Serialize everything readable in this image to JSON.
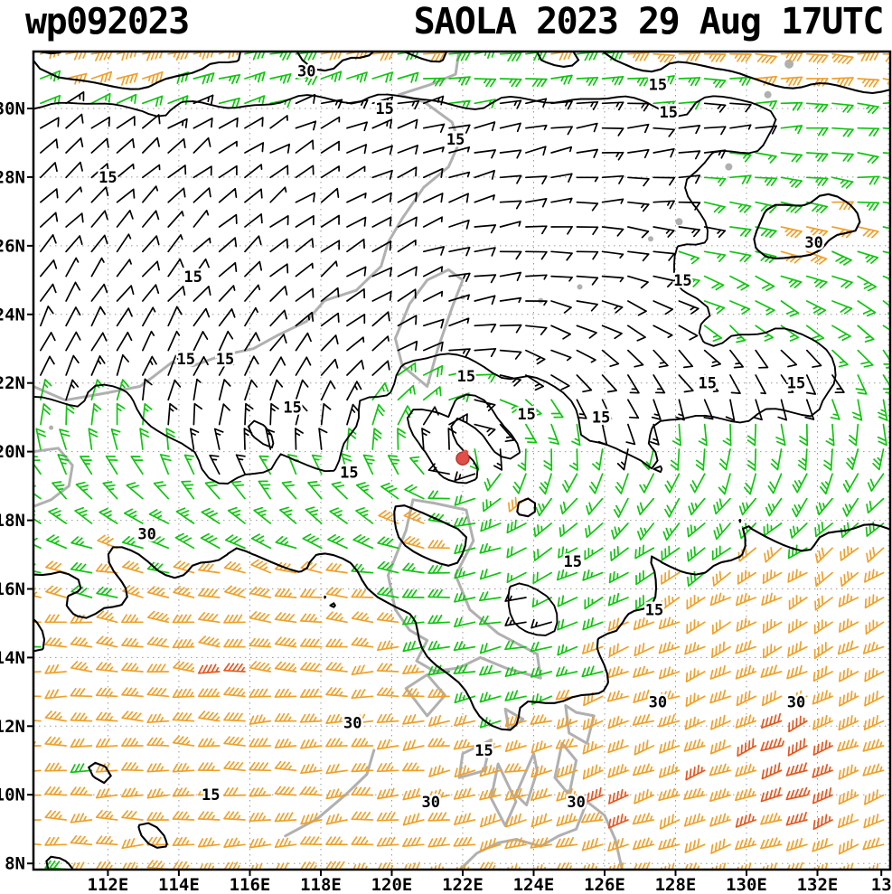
{
  "header": {
    "left_title": "wp092023",
    "right_title": "SAOLA 2023 29 Aug 17UTC"
  },
  "axes": {
    "lat_ticks": [
      {
        "label": "30N",
        "value": 30
      },
      {
        "label": "28N",
        "value": 28
      },
      {
        "label": "26N",
        "value": 26
      },
      {
        "label": "24N",
        "value": 24
      },
      {
        "label": "22N",
        "value": 22
      },
      {
        "label": "20N",
        "value": 20
      },
      {
        "label": "18N",
        "value": 18
      },
      {
        "label": "16N",
        "value": 16
      },
      {
        "label": "14N",
        "value": 14
      },
      {
        "label": "12N",
        "value": 12
      },
      {
        "label": "10N",
        "value": 10
      },
      {
        "label": "8N",
        "value": 8
      }
    ],
    "lon_ticks": [
      {
        "label": "112E",
        "value": 112
      },
      {
        "label": "114E",
        "value": 114
      },
      {
        "label": "116E",
        "value": 116
      },
      {
        "label": "118E",
        "value": 118
      },
      {
        "label": "120E",
        "value": 120
      },
      {
        "label": "122E",
        "value": 122
      },
      {
        "label": "124E",
        "value": 124
      },
      {
        "label": "126E",
        "value": 126
      },
      {
        "label": "128E",
        "value": 128
      },
      {
        "label": "130E",
        "value": 130
      },
      {
        "label": "132E",
        "value": 132
      },
      {
        "label": "13",
        "value": 133.8
      }
    ]
  },
  "map": {
    "type": "wind-barb-analysis",
    "extent": {
      "lon_min": 109.9,
      "lon_max": 134.05,
      "lat_min": 7.82,
      "lat_max": 31.66
    },
    "grid_lines": {
      "lat_values": [
        8,
        10,
        12,
        14,
        16,
        18,
        20,
        22,
        24,
        26,
        28,
        30
      ],
      "lon_values": [
        112,
        114,
        116,
        118,
        120,
        122,
        124,
        126,
        128,
        130,
        132,
        134
      ]
    },
    "isotach_levels": [
      15,
      30
    ],
    "speed_thresholds": {
      "moderate": 15,
      "strong": 30,
      "extreme": 46
    },
    "colors": {
      "barb_calm": "#000000",
      "barb_moderate": "#0fc50f",
      "barb_strong": "#f0a02a",
      "barb_extreme": "#e5571f",
      "coastline": "#b0b0b0",
      "grid": "#999999",
      "contour": "#000000",
      "border": "#000000"
    },
    "storm": {
      "id": "wp092023",
      "name": "SAOLA",
      "lon": 122.0,
      "lat": 19.8,
      "marker_color": "#df5148"
    },
    "contour_labels": [
      {
        "v": "30",
        "lon": 117.6,
        "lat": 31.1
      },
      {
        "v": "15",
        "lon": 119.8,
        "lat": 30.0
      },
      {
        "v": "15",
        "lon": 121.8,
        "lat": 29.1
      },
      {
        "v": "15",
        "lon": 127.5,
        "lat": 30.7
      },
      {
        "v": "15",
        "lon": 127.8,
        "lat": 29.9
      },
      {
        "v": "15",
        "lon": 112.0,
        "lat": 28.0
      },
      {
        "v": "30",
        "lon": 131.9,
        "lat": 26.1
      },
      {
        "v": "15",
        "lon": 114.4,
        "lat": 25.1
      },
      {
        "v": "15",
        "lon": 128.2,
        "lat": 25.0
      },
      {
        "v": "15",
        "lon": 114.2,
        "lat": 22.7
      },
      {
        "v": "15",
        "lon": 115.3,
        "lat": 22.7
      },
      {
        "v": "15",
        "lon": 117.2,
        "lat": 21.3
      },
      {
        "v": "15",
        "lon": 122.1,
        "lat": 22.2
      },
      {
        "v": "15",
        "lon": 123.8,
        "lat": 21.1
      },
      {
        "v": "15",
        "lon": 125.9,
        "lat": 21.0
      },
      {
        "v": "15",
        "lon": 128.9,
        "lat": 22.0
      },
      {
        "v": "15",
        "lon": 131.4,
        "lat": 22.0
      },
      {
        "v": "15",
        "lon": 118.8,
        "lat": 19.4
      },
      {
        "v": "30",
        "lon": 113.1,
        "lat": 17.6
      },
      {
        "v": "15",
        "lon": 125.1,
        "lat": 16.8
      },
      {
        "v": "15",
        "lon": 127.4,
        "lat": 15.4
      },
      {
        "v": "30",
        "lon": 118.9,
        "lat": 12.1
      },
      {
        "v": "30",
        "lon": 127.5,
        "lat": 12.7
      },
      {
        "v": "30",
        "lon": 131.4,
        "lat": 12.7
      },
      {
        "v": "15",
        "lon": 122.6,
        "lat": 11.3
      },
      {
        "v": "15",
        "lon": 114.9,
        "lat": 10.0
      },
      {
        "v": "30",
        "lon": 121.1,
        "lat": 9.8
      },
      {
        "v": "30",
        "lon": 125.2,
        "lat": 9.8
      }
    ],
    "coastlines": [
      {
        "name": "china-coast",
        "pts": [
          [
            109.9,
            21.9
          ],
          [
            110.8,
            21.5
          ],
          [
            111.9,
            21.7
          ],
          [
            112.9,
            21.9
          ],
          [
            113.3,
            22.2
          ],
          [
            113.8,
            22.6
          ],
          [
            114.4,
            22.5
          ],
          [
            115.2,
            22.8
          ],
          [
            116.1,
            23.0
          ],
          [
            116.8,
            23.4
          ],
          [
            117.6,
            23.8
          ],
          [
            118.1,
            24.4
          ],
          [
            119.0,
            24.7
          ],
          [
            119.7,
            25.4
          ],
          [
            119.9,
            26.1
          ],
          [
            120.3,
            26.8
          ],
          [
            120.9,
            27.7
          ],
          [
            121.6,
            28.3
          ],
          [
            121.9,
            29.0
          ],
          [
            121.7,
            29.6
          ],
          [
            120.9,
            30.2
          ],
          [
            120.2,
            30.4
          ],
          [
            121.1,
            30.7
          ],
          [
            121.8,
            31.0
          ],
          [
            121.9,
            31.7
          ]
        ]
      },
      {
        "name": "hainan",
        "pts": [
          [
            109.9,
            20.0
          ],
          [
            110.6,
            20.1
          ],
          [
            111.0,
            19.6
          ],
          [
            110.9,
            19.0
          ],
          [
            110.4,
            18.6
          ],
          [
            109.9,
            18.4
          ]
        ]
      },
      {
        "name": "taiwan",
        "pts": [
          [
            121.0,
            21.9
          ],
          [
            120.3,
            22.5
          ],
          [
            120.1,
            23.3
          ],
          [
            120.5,
            24.3
          ],
          [
            121.0,
            25.0
          ],
          [
            121.6,
            25.3
          ],
          [
            122.0,
            25.0
          ],
          [
            121.7,
            24.2
          ],
          [
            121.3,
            23.0
          ],
          [
            121.0,
            21.9
          ]
        ]
      },
      {
        "name": "luzon",
        "pts": [
          [
            120.6,
            18.6
          ],
          [
            121.2,
            18.5
          ],
          [
            122.1,
            18.3
          ],
          [
            122.3,
            17.4
          ],
          [
            121.8,
            16.4
          ],
          [
            122.2,
            15.4
          ],
          [
            123.0,
            14.7
          ],
          [
            124.1,
            14.1
          ],
          [
            124.2,
            13.4
          ],
          [
            123.2,
            13.7
          ],
          [
            122.5,
            14.0
          ],
          [
            121.9,
            13.7
          ],
          [
            121.2,
            13.6
          ],
          [
            120.7,
            13.9
          ],
          [
            121.0,
            14.5
          ],
          [
            120.5,
            14.8
          ],
          [
            120.1,
            15.4
          ],
          [
            119.9,
            16.4
          ],
          [
            120.4,
            17.7
          ],
          [
            120.6,
            18.6
          ]
        ]
      },
      {
        "name": "mindoro",
        "pts": [
          [
            121.0,
            13.5
          ],
          [
            120.4,
            13.1
          ],
          [
            121.0,
            12.3
          ],
          [
            121.5,
            12.9
          ],
          [
            121.0,
            13.5
          ]
        ]
      },
      {
        "name": "palawan",
        "pts": [
          [
            117.0,
            8.8
          ],
          [
            117.9,
            9.3
          ],
          [
            118.7,
            10.0
          ],
          [
            119.3,
            10.6
          ],
          [
            119.5,
            11.3
          ]
        ]
      },
      {
        "name": "panay",
        "pts": [
          [
            122.8,
            11.6
          ],
          [
            122.0,
            11.2
          ],
          [
            121.9,
            10.5
          ],
          [
            122.6,
            10.7
          ],
          [
            122.8,
            11.6
          ]
        ]
      },
      {
        "name": "negros",
        "pts": [
          [
            123.0,
            10.9
          ],
          [
            122.8,
            9.9
          ],
          [
            123.2,
            9.1
          ],
          [
            123.5,
            9.8
          ],
          [
            123.0,
            10.9
          ]
        ]
      },
      {
        "name": "cebu",
        "pts": [
          [
            124.0,
            11.2
          ],
          [
            123.5,
            10.0
          ],
          [
            123.8,
            9.7
          ],
          [
            124.1,
            10.7
          ],
          [
            124.0,
            11.2
          ]
        ]
      },
      {
        "name": "leyte",
        "pts": [
          [
            124.8,
            11.5
          ],
          [
            124.6,
            10.5
          ],
          [
            125.0,
            10.0
          ],
          [
            125.2,
            11.0
          ],
          [
            124.8,
            11.5
          ]
        ]
      },
      {
        "name": "samar",
        "pts": [
          [
            124.9,
            12.6
          ],
          [
            125.2,
            12.4
          ],
          [
            125.7,
            12.3
          ],
          [
            125.5,
            11.5
          ],
          [
            125.0,
            11.8
          ],
          [
            124.9,
            12.6
          ]
        ]
      },
      {
        "name": "masbate",
        "pts": [
          [
            123.2,
            12.5
          ],
          [
            123.7,
            12.2
          ],
          [
            123.3,
            11.9
          ],
          [
            123.2,
            12.5
          ]
        ]
      },
      {
        "name": "mindanao",
        "pts": [
          [
            121.9,
            7.8
          ],
          [
            122.4,
            8.3
          ],
          [
            123.0,
            8.6
          ],
          [
            123.5,
            8.7
          ],
          [
            124.2,
            8.5
          ],
          [
            124.7,
            8.8
          ],
          [
            125.2,
            9.0
          ],
          [
            125.5,
            9.8
          ],
          [
            126.0,
            9.4
          ],
          [
            126.3,
            8.7
          ],
          [
            126.5,
            7.8
          ]
        ]
      }
    ],
    "islands": [
      {
        "lon": 124.2,
        "lat": 24.4,
        "r": 3
      },
      {
        "lon": 125.3,
        "lat": 24.8,
        "r": 3
      },
      {
        "lon": 127.3,
        "lat": 26.2,
        "r": 3
      },
      {
        "lon": 128.1,
        "lat": 26.7,
        "r": 4
      },
      {
        "lon": 129.5,
        "lat": 28.3,
        "r": 4
      },
      {
        "lon": 130.6,
        "lat": 30.4,
        "r": 4
      },
      {
        "lon": 131.2,
        "lat": 31.3,
        "r": 5
      },
      {
        "lon": 122.0,
        "lat": 24.5,
        "r": 2.5
      },
      {
        "lon": 110.4,
        "lat": 20.7,
        "r": 2.5
      }
    ]
  }
}
